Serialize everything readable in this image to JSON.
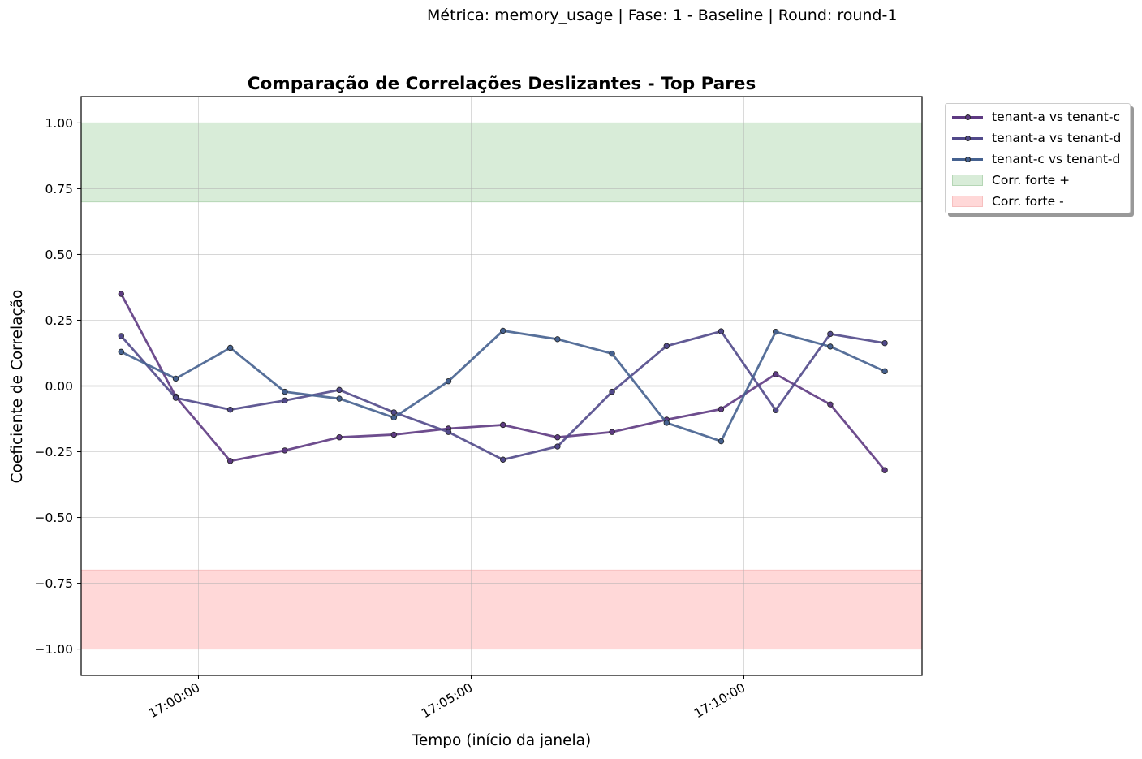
{
  "suptitle": "Métrica: memory_usage | Fase: 1 - Baseline | Round: round-1",
  "chart_data": {
    "type": "line",
    "title": "Comparação de Correlações Deslizantes - Top Pares",
    "xlabel": "Tempo (início da janela)",
    "ylabel": "Coeficiente de Correlação",
    "ylim": [
      -1.1,
      1.1
    ],
    "yticks": [
      1.0,
      0.75,
      0.5,
      0.25,
      0.0,
      -0.25,
      -0.5,
      -0.75,
      -1.0
    ],
    "ytick_labels": [
      "1.00",
      "0.75",
      "0.50",
      "0.25",
      "0.00",
      "−0.25",
      "−0.50",
      "−0.75",
      "−1.00"
    ],
    "xlim": [
      "16:57:51",
      "17:13:16"
    ],
    "xticks": [
      "17:00:00",
      "17:05:00",
      "17:10:00"
    ],
    "x": [
      "16:58:35",
      "16:59:35",
      "17:00:35",
      "17:01:35",
      "17:02:35",
      "17:03:35",
      "17:04:35",
      "17:05:35",
      "17:06:35",
      "17:07:35",
      "17:08:35",
      "17:09:35",
      "17:10:35",
      "17:11:35",
      "17:12:35"
    ],
    "grid": true,
    "zero_line": true,
    "bands": [
      {
        "label": "Corr. forte +",
        "from": 0.7,
        "to": 1.0,
        "color": "#d8ecd8",
        "edge": "#b5d6b5"
      },
      {
        "label": "Corr. forte -",
        "from": -1.0,
        "to": -0.7,
        "color": "#ffd8d8",
        "edge": "#f7c0c0"
      }
    ],
    "series": [
      {
        "name": "tenant-a vs tenant-c",
        "color": "#5e3a82",
        "values": [
          0.35,
          -0.04,
          -0.285,
          -0.245,
          -0.195,
          -0.185,
          -0.162,
          -0.148,
          -0.195,
          -0.175,
          -0.128,
          -0.088,
          0.045,
          -0.07,
          -0.32
        ]
      },
      {
        "name": "tenant-a vs tenant-d",
        "color": "#51498a",
        "values": [
          0.19,
          -0.045,
          -0.09,
          -0.055,
          -0.015,
          -0.1,
          -0.175,
          -0.28,
          -0.23,
          -0.022,
          0.152,
          0.208,
          -0.092,
          0.198,
          0.163
        ]
      },
      {
        "name": "tenant-c vs tenant-d",
        "color": "#45618f",
        "values": [
          0.13,
          0.028,
          0.145,
          -0.022,
          -0.048,
          -0.12,
          0.018,
          0.21,
          0.178,
          0.123,
          -0.14,
          -0.21,
          0.206,
          0.15,
          0.056
        ]
      }
    ],
    "legend_position": "outside top-right"
  }
}
